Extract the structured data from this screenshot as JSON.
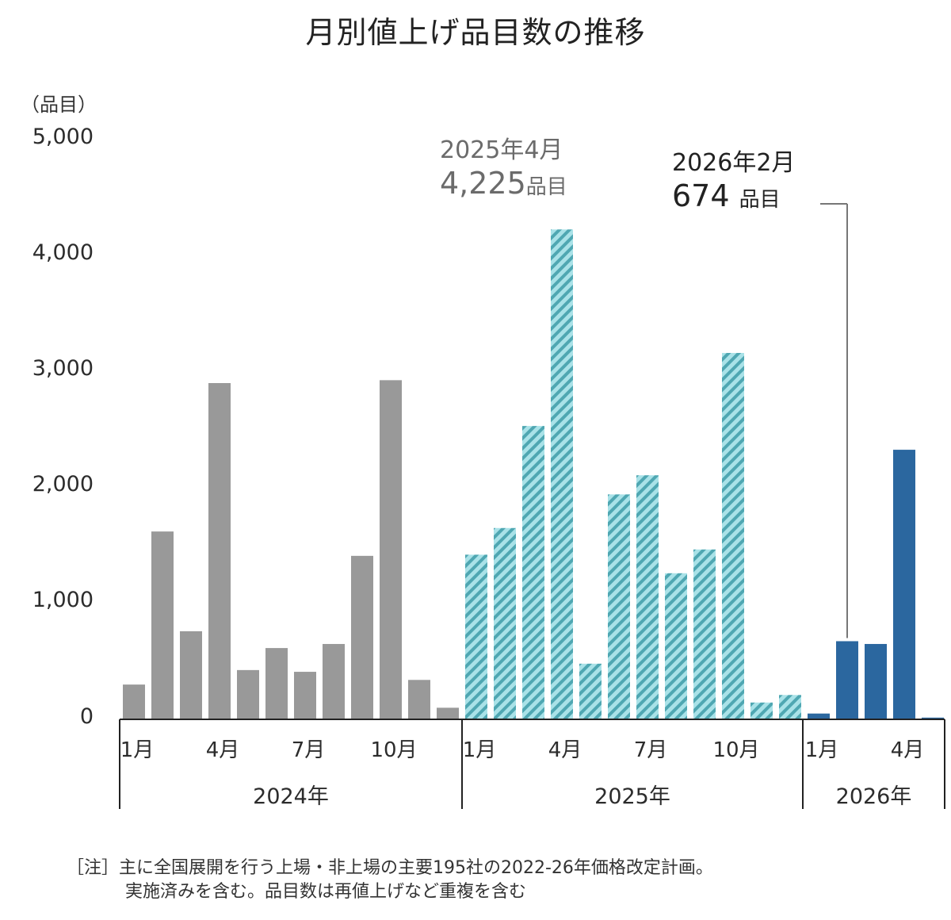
{
  "title": "月別値上げ品目数の推移",
  "y_unit_label": "（品目）",
  "y_ticks": [
    "5,000",
    "4,000",
    "3,000",
    "2,000",
    "1,000",
    "0"
  ],
  "annotations": {
    "peak": {
      "period": "2025年4月",
      "value": "4,225",
      "unit": "品目"
    },
    "latest": {
      "period": "2026年2月",
      "value": "674",
      "unit": "品目"
    }
  },
  "x_month_labels": [
    {
      "label": "1月",
      "index": 0
    },
    {
      "label": "4月",
      "index": 3
    },
    {
      "label": "7月",
      "index": 6
    },
    {
      "label": "10月",
      "index": 9
    },
    {
      "label": "1月",
      "index": 12
    },
    {
      "label": "4月",
      "index": 15
    },
    {
      "label": "7月",
      "index": 18
    },
    {
      "label": "10月",
      "index": 21
    },
    {
      "label": "1月",
      "index": 24
    },
    {
      "label": "4月",
      "index": 27
    }
  ],
  "year_groups": [
    {
      "label": "2024年",
      "start": 0,
      "end": 12
    },
    {
      "label": "2025年",
      "start": 12,
      "end": 24
    },
    {
      "label": "2026年",
      "start": 24,
      "end": 29
    }
  ],
  "note": {
    "prefix": "［注］",
    "line1": "主に全国展開を行う上場・非上場の主要195社の2022-26年価格改定計画。",
    "line2": "実施済みを含む。品目数は再値上げなど重複を含む"
  },
  "colors": {
    "y2024": "#999999",
    "y2025_base": "#a9e2e8",
    "y2025_stripe": "#4fa7b2",
    "y2026": "#2b679f",
    "axis": "#222222",
    "leader": "#777777"
  },
  "chart_data": {
    "type": "bar",
    "title": "月別値上げ品目数の推移",
    "xlabel": "",
    "ylabel": "品目",
    "ylim": [
      0,
      5000
    ],
    "yticks": [
      0,
      1000,
      2000,
      3000,
      4000,
      5000
    ],
    "grid": false,
    "categories": [
      "2024-01",
      "2024-02",
      "2024-03",
      "2024-04",
      "2024-05",
      "2024-06",
      "2024-07",
      "2024-08",
      "2024-09",
      "2024-10",
      "2024-11",
      "2024-12",
      "2025-01",
      "2025-02",
      "2025-03",
      "2025-04",
      "2025-05",
      "2025-06",
      "2025-07",
      "2025-08",
      "2025-09",
      "2025-10",
      "2025-11",
      "2025-12",
      "2026-01",
      "2026-02",
      "2026-03",
      "2026-04",
      "2026-05"
    ],
    "series": [
      {
        "name": "2024年",
        "style": "solid gray",
        "values": [
          300,
          1620,
          760,
          2900,
          425,
          615,
          410,
          650,
          1410,
          2925,
          340,
          100
        ]
      },
      {
        "name": "2025年",
        "style": "hatched cyan",
        "values": [
          1420,
          1650,
          2530,
          4225,
          480,
          1940,
          2105,
          1260,
          1465,
          3160,
          145,
          210
        ]
      },
      {
        "name": "2026年",
        "style": "solid blue",
        "values": [
          50,
          674,
          650,
          2325,
          15
        ]
      }
    ],
    "annotations": [
      {
        "x": "2025-04",
        "text": "2025年4月 4,225品目"
      },
      {
        "x": "2026-02",
        "text": "2026年2月 674 品目"
      }
    ]
  }
}
